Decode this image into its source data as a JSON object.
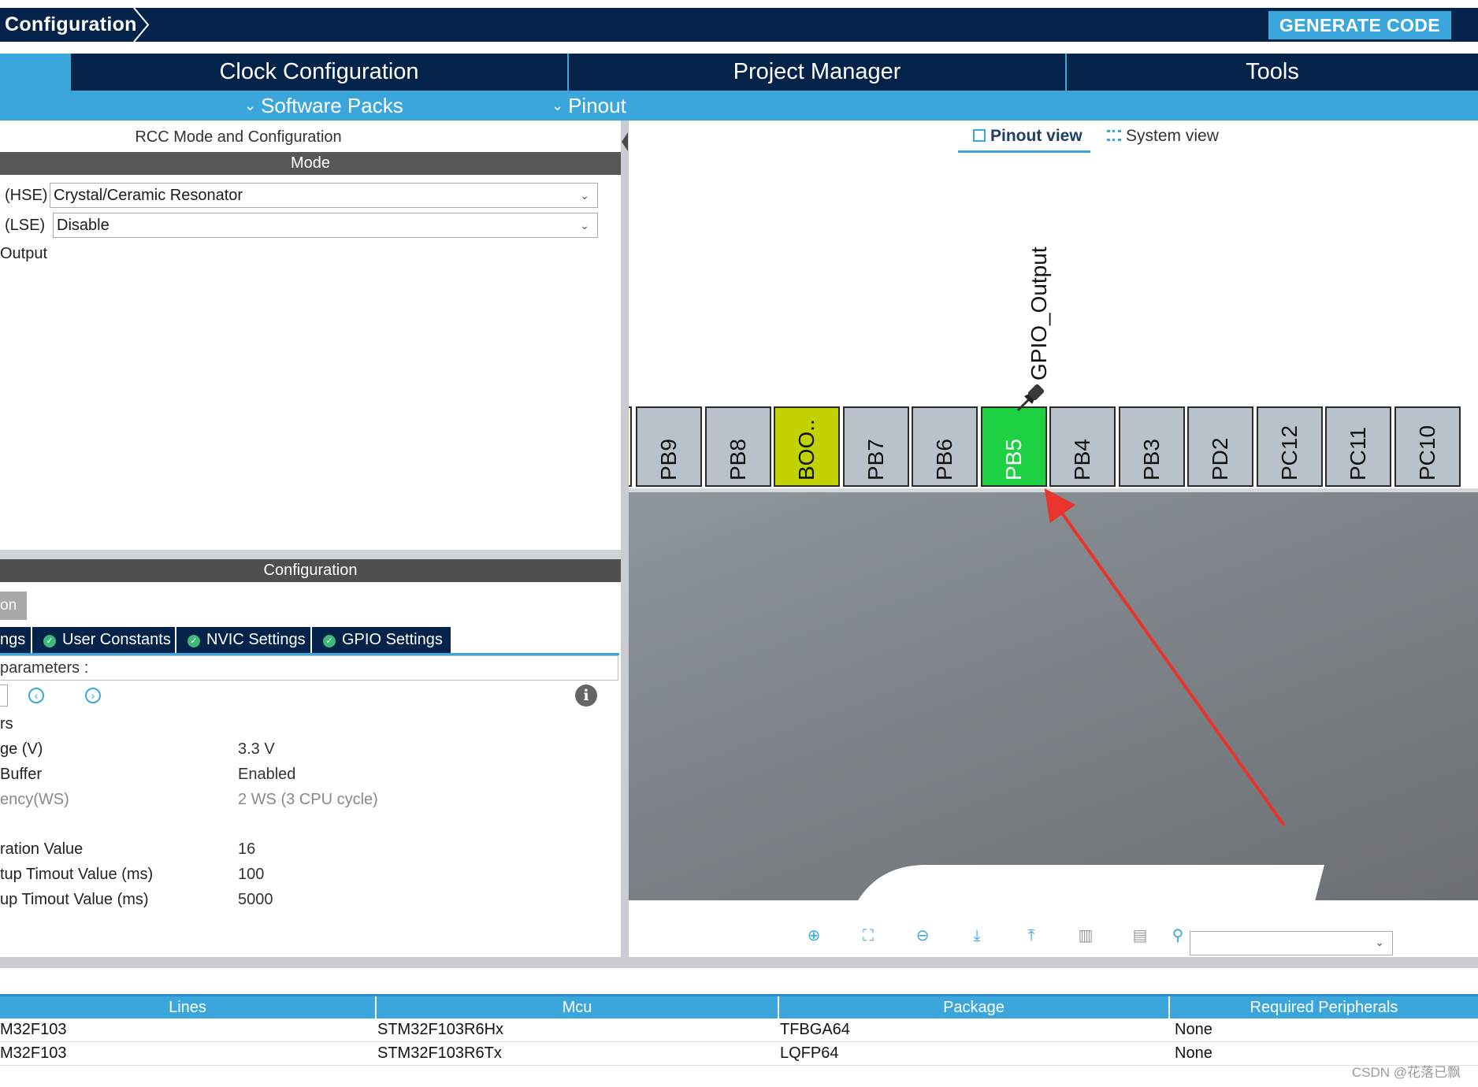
{
  "header": {
    "breadcrumb": "Configuration",
    "generate_label": "GENERATE CODE"
  },
  "main_tabs": [
    "Clock Configuration",
    "Project Manager",
    "Tools"
  ],
  "sub_tabs": [
    "Software Packs",
    "Pinout"
  ],
  "left": {
    "rcc_title": "RCC Mode and Configuration",
    "mode_header": "Mode",
    "hse_label": "(HSE)",
    "hse_value": "Crystal/Ceramic Resonator",
    "lse_label": "(LSE)",
    "lse_value": "Disable",
    "output_label": "Output",
    "config_header": "Configuration",
    "gray_tab": "on",
    "config_tabs": [
      "ngs",
      "User Constants",
      "NVIC Settings",
      "GPIO Settings"
    ],
    "params_label": "parameters :",
    "params": [
      {
        "name": "rs",
        "value": ""
      },
      {
        "name": "ge (V)",
        "value": "3.3 V"
      },
      {
        "name": "Buffer",
        "value": "Enabled"
      },
      {
        "name": "ency(WS)",
        "value": "2 WS (3 CPU cycle)",
        "muted": true
      },
      {
        "name": "ration Value",
        "value": "16"
      },
      {
        "name": "tup Timout Value (ms)",
        "value": "100"
      },
      {
        "name": "up Timout Value (ms)",
        "value": "5000"
      }
    ]
  },
  "pinout": {
    "view_pinout": "Pinout view",
    "view_system": "System view",
    "gpio_label": "GPIO_Output",
    "pins": [
      {
        "label": "PB9",
        "color": "#b9c2ca"
      },
      {
        "label": "PB8",
        "color": "#b9c2ca"
      },
      {
        "label": "BOO..",
        "color": "#c2d200"
      },
      {
        "label": "PB7",
        "color": "#b9c2ca"
      },
      {
        "label": "PB6",
        "color": "#b9c2ca"
      },
      {
        "label": "PB5",
        "color": "#1ed143",
        "selected": true
      },
      {
        "label": "PB4",
        "color": "#b9c2ca"
      },
      {
        "label": "PB3",
        "color": "#b9c2ca"
      },
      {
        "label": "PD2",
        "color": "#b9c2ca"
      },
      {
        "label": "PC12",
        "color": "#b9c2ca"
      },
      {
        "label": "PC11",
        "color": "#b9c2ca"
      },
      {
        "label": "PC10",
        "color": "#b9c2ca"
      }
    ],
    "accent_arrow": "#e8342c"
  },
  "table": {
    "headers": [
      "Lines",
      "Mcu",
      "Package",
      "Required Peripherals"
    ],
    "rows": [
      [
        "M32F103",
        "STM32F103R6Hx",
        "TFBGA64",
        "None"
      ],
      [
        "M32F103",
        "STM32F103R6Tx",
        "LQFP64",
        "None"
      ]
    ]
  },
  "watermark": "CSDN @花落已飘"
}
